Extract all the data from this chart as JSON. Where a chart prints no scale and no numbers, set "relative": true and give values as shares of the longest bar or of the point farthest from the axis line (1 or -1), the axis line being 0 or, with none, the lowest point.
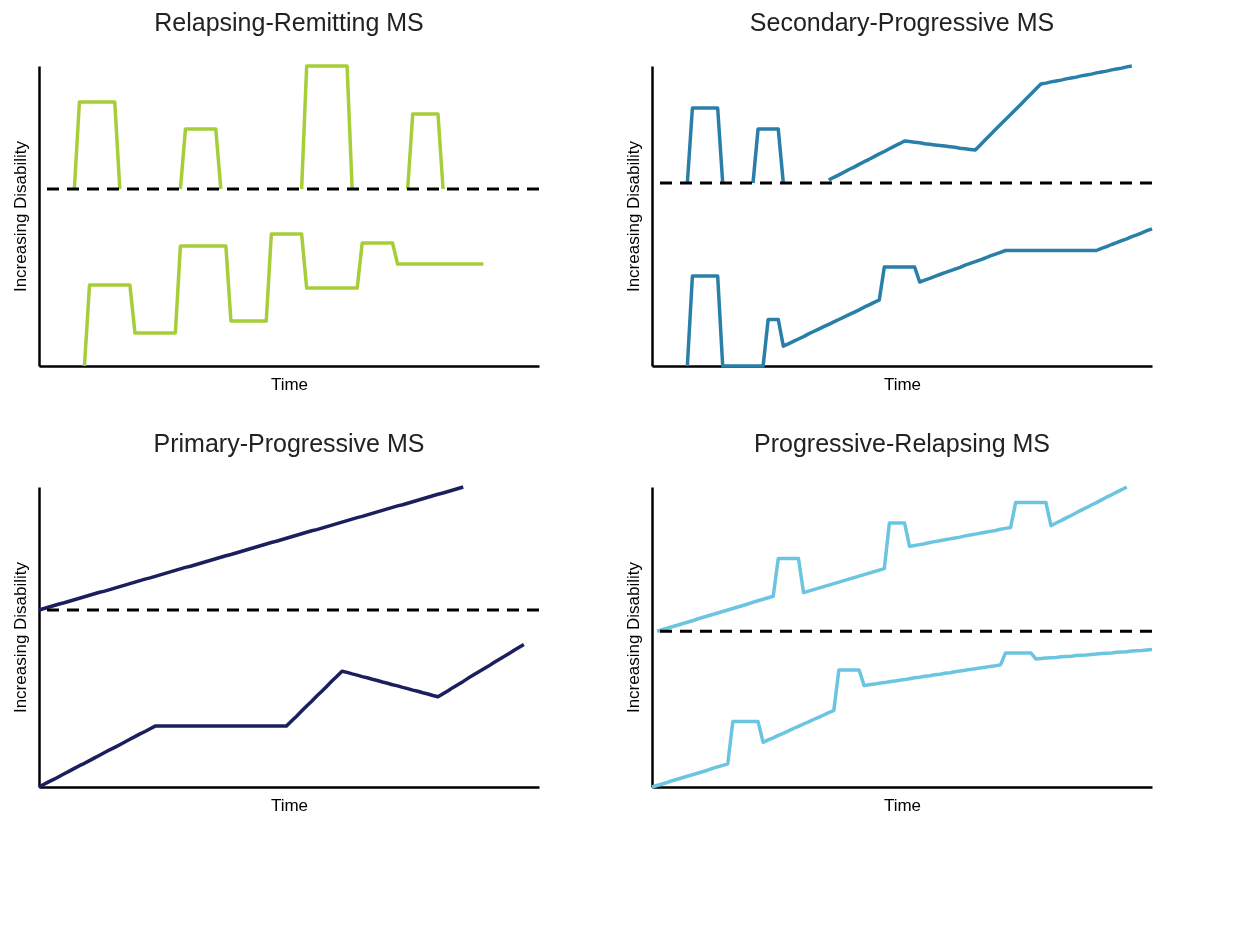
{
  "chart_data": [
    {
      "type": "line",
      "title": "Relapsing-Remitting MS",
      "xlabel": "Time",
      "ylabel": "Increasing Disability",
      "relative": true,
      "line_style": "solid",
      "marker": "none",
      "categories": [
        null,
        null,
        null,
        null,
        null,
        null,
        null,
        null,
        null,
        null,
        null,
        null,
        null,
        null,
        null,
        null,
        null,
        null,
        null,
        null,
        null,
        null,
        null,
        null,
        null,
        null,
        null,
        null,
        null,
        null,
        null,
        null,
        null,
        null,
        null,
        null,
        null,
        null,
        null,
        null,
        null,
        null,
        null,
        null,
        null,
        null,
        null,
        null,
        null,
        null,
        null,
        null,
        null,
        null,
        null,
        null,
        null,
        null,
        null,
        null,
        null,
        null,
        null,
        null,
        null,
        null,
        null,
        null,
        null,
        null,
        null,
        null,
        null,
        null,
        null,
        null,
        null,
        null,
        null,
        null,
        null,
        null,
        null,
        null,
        null,
        null,
        null,
        null,
        null,
        null,
        null,
        null,
        null,
        null,
        null,
        null,
        null,
        null,
        null,
        null
      ],
      "series": [
        {
          "color": "#a6ce39",
          "values": [
            null,
            null,
            null,
            null,
            null,
            null,
            null,
            0.59,
            0.88,
            0.88,
            0.88,
            0.88,
            0.88,
            0.88,
            0.88,
            0.88,
            0.59,
            null,
            null,
            null,
            null,
            null,
            null,
            null,
            null,
            null,
            null,
            null,
            0.59,
            0.79,
            0.79,
            0.79,
            0.79,
            0.79,
            0.79,
            0.79,
            0.59,
            null,
            null,
            null,
            null,
            null,
            null,
            null,
            null,
            null,
            null,
            null,
            null,
            null,
            null,
            null,
            0.59,
            1,
            1,
            1,
            1,
            1,
            1,
            1,
            1,
            1,
            0.59,
            null,
            null,
            null,
            null,
            null,
            null,
            null,
            null,
            null,
            null,
            0.59,
            0.84,
            0.84,
            0.84,
            0.84,
            0.84,
            0.84,
            0.59,
            null,
            null,
            null,
            null,
            null,
            null,
            null,
            null,
            null,
            null,
            null,
            null,
            null,
            null,
            null,
            null,
            null,
            null,
            null
          ]
        },
        {
          "color": "#a6ce39",
          "values": [
            null,
            null,
            null,
            null,
            null,
            null,
            null,
            null,
            null,
            0,
            0.27,
            0.27,
            0.27,
            0.27,
            0.27,
            0.27,
            0.27,
            0.27,
            0.27,
            0.11,
            0.11,
            0.11,
            0.11,
            0.11,
            0.11,
            0.11,
            0.11,
            0.11,
            0.4,
            0.4,
            0.4,
            0.4,
            0.4,
            0.4,
            0.4,
            0.4,
            0.4,
            0.4,
            0.15,
            0.15,
            0.15,
            0.15,
            0.15,
            0.15,
            0.15,
            0.15,
            0.44,
            0.44,
            0.44,
            0.44,
            0.44,
            0.44,
            0.44,
            0.26,
            0.26,
            0.26,
            0.26,
            0.26,
            0.26,
            0.26,
            0.26,
            0.26,
            0.26,
            0.26,
            0.41,
            0.41,
            0.41,
            0.41,
            0.41,
            0.41,
            0.41,
            0.34,
            0.34,
            0.34,
            0.34,
            0.34,
            0.34,
            0.34,
            0.34,
            0.34,
            0.34,
            0.34,
            0.34,
            0.34,
            0.34,
            0.34,
            0.34,
            0.34,
            0.34,
            null,
            null,
            null,
            null,
            null,
            null,
            null,
            null,
            null,
            null,
            null
          ]
        }
      ],
      "ref_lines": [
        {
          "axis": "y",
          "value": 0.59,
          "color": "#000000",
          "line_style": "dashed"
        }
      ]
    },
    {
      "type": "line",
      "title": "Secondary-Progressive MS",
      "xlabel": "Time",
      "ylabel": "Increasing Disability",
      "relative": true,
      "line_style": "solid",
      "marker": "none",
      "categories": [
        null,
        null,
        null,
        null,
        null,
        null,
        null,
        null,
        null,
        null,
        null,
        null,
        null,
        null,
        null,
        null,
        null,
        null,
        null,
        null,
        null,
        null,
        null,
        null,
        null,
        null,
        null,
        null,
        null,
        null,
        null,
        null,
        null,
        null,
        null,
        null,
        null,
        null,
        null,
        null,
        null,
        null,
        null,
        null,
        null,
        null,
        null,
        null,
        null,
        null,
        null,
        null,
        null,
        null,
        null,
        null,
        null,
        null,
        null,
        null,
        null,
        null,
        null,
        null,
        null,
        null,
        null,
        null,
        null,
        null,
        null,
        null,
        null,
        null,
        null,
        null,
        null,
        null,
        null,
        null,
        null,
        null,
        null,
        null,
        null,
        null,
        null,
        null,
        null,
        null,
        null,
        null,
        null,
        null,
        null,
        null,
        null,
        null,
        null,
        null
      ],
      "series": [
        {
          "color": "#2a7fa8",
          "values": [
            null,
            null,
            null,
            null,
            null,
            null,
            null,
            0.61,
            0.86,
            0.86,
            0.86,
            0.86,
            0.86,
            0.86,
            0.61,
            null,
            null,
            null,
            null,
            null,
            0.61,
            0.79,
            0.79,
            0.79,
            0.79,
            0.79,
            0.61,
            null,
            null,
            null,
            null,
            null,
            null,
            null,
            null,
            0.62,
            0.629,
            0.637,
            0.646,
            0.655,
            0.663,
            0.672,
            0.681,
            0.689,
            0.698,
            0.707,
            0.715,
            0.724,
            0.733,
            0.741,
            0.75,
            0.748,
            0.746,
            0.744,
            0.741,
            0.739,
            0.737,
            0.735,
            0.733,
            0.731,
            0.729,
            0.726,
            0.724,
            0.722,
            0.72,
            0.737,
            0.754,
            0.771,
            0.788,
            0.805,
            0.822,
            0.838,
            0.855,
            0.872,
            0.889,
            0.906,
            0.923,
            0.94,
            0.943,
            0.947,
            0.95,
            0.953,
            0.957,
            0.96,
            0.963,
            0.967,
            0.97,
            0.973,
            0.977,
            0.98,
            0.983,
            0.987,
            0.99,
            0.993,
            0.997,
            1,
            null,
            null,
            null,
            null
          ]
        },
        {
          "color": "#2a7fa8",
          "values": [
            null,
            null,
            null,
            null,
            null,
            null,
            null,
            0,
            0.3,
            0.3,
            0.3,
            0.3,
            0.3,
            0.3,
            0,
            0,
            0,
            0,
            0,
            0,
            0,
            0,
            0,
            0.155,
            0.155,
            0.155,
            0.066,
            0.074,
            0.082,
            0.09,
            0.098,
            0.107,
            0.115,
            0.123,
            0.131,
            0.139,
            0.147,
            0.155,
            0.163,
            0.171,
            0.179,
            0.187,
            0.196,
            0.204,
            0.212,
            0.22,
            0.33,
            0.33,
            0.33,
            0.33,
            0.33,
            0.33,
            0.33,
            0.28,
            0.286,
            0.292,
            0.299,
            0.305,
            0.311,
            0.317,
            0.323,
            0.329,
            0.336,
            0.342,
            0.348,
            0.354,
            0.36,
            0.367,
            0.373,
            0.379,
            0.385,
            0.385,
            0.385,
            0.385,
            0.385,
            0.385,
            0.385,
            0.385,
            0.385,
            0.385,
            0.385,
            0.385,
            0.385,
            0.385,
            0.385,
            0.385,
            0.385,
            0.385,
            0.385,
            0.392,
            0.398,
            0.405,
            0.411,
            0.418,
            0.424,
            0.431,
            0.437,
            0.444,
            0.451,
            0.457
          ]
        }
      ],
      "ref_lines": [
        {
          "axis": "y",
          "value": 0.61,
          "color": "#000000",
          "line_style": "dashed"
        }
      ]
    },
    {
      "type": "line",
      "title": "Primary-Progressive MS",
      "xlabel": "Time",
      "ylabel": "Increasing Disability",
      "relative": true,
      "line_style": "solid",
      "marker": "none",
      "categories": [
        null,
        null,
        null,
        null,
        null,
        null,
        null,
        null,
        null,
        null,
        null,
        null,
        null,
        null,
        null,
        null,
        null,
        null,
        null,
        null,
        null,
        null,
        null,
        null,
        null,
        null,
        null,
        null,
        null,
        null,
        null,
        null,
        null,
        null,
        null,
        null,
        null,
        null,
        null,
        null,
        null,
        null,
        null,
        null,
        null,
        null,
        null,
        null,
        null,
        null,
        null,
        null,
        null,
        null,
        null,
        null,
        null,
        null,
        null,
        null,
        null,
        null,
        null,
        null,
        null,
        null,
        null,
        null,
        null,
        null,
        null,
        null,
        null,
        null,
        null,
        null,
        null,
        null,
        null,
        null,
        null,
        null,
        null,
        null,
        null,
        null,
        null,
        null,
        null,
        null,
        null,
        null,
        null,
        null,
        null,
        null,
        null,
        null,
        null,
        null
      ],
      "series": [
        {
          "color": "#1b1f5e",
          "values": [
            0.59,
            0.595,
            0.6,
            0.605,
            0.61,
            0.614,
            0.619,
            0.624,
            0.629,
            0.634,
            0.639,
            0.644,
            0.649,
            0.653,
            0.658,
            0.663,
            0.668,
            0.673,
            0.678,
            0.683,
            0.688,
            0.693,
            0.697,
            0.702,
            0.707,
            0.712,
            0.717,
            0.722,
            0.727,
            0.732,
            0.736,
            0.741,
            0.746,
            0.751,
            0.756,
            0.761,
            0.766,
            0.771,
            0.775,
            0.78,
            0.785,
            0.79,
            0.795,
            0.8,
            0.805,
            0.81,
            0.815,
            0.819,
            0.824,
            0.829,
            0.834,
            0.839,
            0.844,
            0.849,
            0.854,
            0.858,
            0.863,
            0.868,
            0.873,
            0.878,
            0.883,
            0.888,
            0.893,
            0.898,
            0.902,
            0.907,
            0.912,
            0.917,
            0.922,
            0.927,
            0.932,
            0.937,
            0.941,
            0.946,
            0.951,
            0.956,
            0.961,
            0.966,
            0.971,
            0.976,
            0.98,
            0.985,
            0.99,
            0.995,
            1,
            null,
            null,
            null,
            null,
            null,
            null,
            null,
            null,
            null,
            null,
            null,
            null,
            null,
            null,
            null
          ]
        },
        {
          "color": "#1b1f5e",
          "values": [
            0,
            0.009,
            0.018,
            0.026,
            0.035,
            0.044,
            0.053,
            0.062,
            0.071,
            0.079,
            0.088,
            0.097,
            0.106,
            0.115,
            0.124,
            0.132,
            0.141,
            0.15,
            0.159,
            0.168,
            0.177,
            0.185,
            0.194,
            0.203,
            0.203,
            0.203,
            0.203,
            0.203,
            0.203,
            0.203,
            0.203,
            0.203,
            0.203,
            0.203,
            0.203,
            0.203,
            0.203,
            0.203,
            0.203,
            0.203,
            0.203,
            0.203,
            0.203,
            0.203,
            0.203,
            0.203,
            0.203,
            0.203,
            0.203,
            0.203,
            0.22,
            0.236,
            0.253,
            0.27,
            0.286,
            0.303,
            0.319,
            0.336,
            0.353,
            0.369,
            0.386,
            0.382,
            0.377,
            0.373,
            0.368,
            0.364,
            0.359,
            0.355,
            0.35,
            0.346,
            0.341,
            0.337,
            0.332,
            0.328,
            0.323,
            0.319,
            0.314,
            0.31,
            0.305,
            0.301,
            0.311,
            0.321,
            0.332,
            0.342,
            0.352,
            0.363,
            0.373,
            0.383,
            0.393,
            0.403,
            0.414,
            0.424,
            0.434,
            0.444,
            0.455,
            0.465,
            0.475,
            null,
            null,
            null
          ]
        }
      ],
      "ref_lines": [
        {
          "axis": "y",
          "value": 0.59,
          "color": "#000000",
          "line_style": "dashed"
        }
      ]
    },
    {
      "type": "line",
      "title": "Progressive-Relapsing MS",
      "xlabel": "Time",
      "ylabel": "Increasing Disability",
      "relative": true,
      "line_style": "solid",
      "marker": "none",
      "categories": [
        null,
        null,
        null,
        null,
        null,
        null,
        null,
        null,
        null,
        null,
        null,
        null,
        null,
        null,
        null,
        null,
        null,
        null,
        null,
        null,
        null,
        null,
        null,
        null,
        null,
        null,
        null,
        null,
        null,
        null,
        null,
        null,
        null,
        null,
        null,
        null,
        null,
        null,
        null,
        null,
        null,
        null,
        null,
        null,
        null,
        null,
        null,
        null,
        null,
        null,
        null,
        null,
        null,
        null,
        null,
        null,
        null,
        null,
        null,
        null,
        null,
        null,
        null,
        null,
        null,
        null,
        null,
        null,
        null,
        null,
        null,
        null,
        null,
        null,
        null,
        null,
        null,
        null,
        null,
        null,
        null,
        null,
        null,
        null,
        null,
        null,
        null,
        null,
        null,
        null,
        null,
        null,
        null,
        null,
        null,
        null,
        null,
        null,
        null,
        null
      ],
      "series": [
        {
          "color": "#6cc5e0",
          "values": [
            null,
            0.519,
            0.524,
            0.529,
            0.534,
            0.539,
            0.544,
            0.549,
            0.554,
            0.56,
            0.565,
            0.57,
            0.575,
            0.58,
            0.585,
            0.59,
            0.595,
            0.6,
            0.605,
            0.61,
            0.616,
            0.621,
            0.626,
            0.631,
            0.636,
            0.762,
            0.762,
            0.762,
            0.762,
            0.762,
            0.648,
            0.653,
            0.658,
            0.663,
            0.668,
            0.673,
            0.678,
            0.683,
            0.688,
            0.693,
            0.698,
            0.703,
            0.708,
            0.713,
            0.718,
            0.723,
            0.728,
            0.88,
            0.88,
            0.88,
            0.88,
            0.802,
            0.805,
            0.808,
            0.811,
            0.815,
            0.818,
            0.821,
            0.824,
            0.827,
            0.83,
            0.833,
            0.837,
            0.84,
            0.843,
            0.846,
            0.849,
            0.852,
            0.855,
            0.859,
            0.862,
            0.865,
            0.948,
            0.948,
            0.948,
            0.948,
            0.948,
            0.948,
            0.948,
            0.871,
            0.88,
            0.888,
            0.897,
            0.905,
            0.914,
            0.923,
            0.931,
            0.94,
            0.948,
            0.957,
            0.966,
            0.974,
            0.983,
            0.991,
            1,
            null,
            null,
            null,
            null,
            null
          ]
        },
        {
          "color": "#6cc5e0",
          "values": [
            0,
            0.005,
            0.01,
            0.015,
            0.021,
            0.026,
            0.031,
            0.036,
            0.041,
            0.046,
            0.051,
            0.056,
            0.062,
            0.067,
            0.072,
            0.077,
            0.218,
            0.218,
            0.218,
            0.218,
            0.218,
            0.218,
            0.149,
            0.157,
            0.164,
            0.172,
            0.179,
            0.187,
            0.195,
            0.202,
            0.21,
            0.217,
            0.225,
            0.232,
            0.24,
            0.248,
            0.255,
            0.39,
            0.39,
            0.39,
            0.39,
            0.39,
            0.338,
            0.341,
            0.343,
            0.346,
            0.348,
            0.351,
            0.353,
            0.356,
            0.358,
            0.361,
            0.364,
            0.366,
            0.369,
            0.371,
            0.374,
            0.376,
            0.379,
            0.381,
            0.384,
            0.387,
            0.389,
            0.392,
            0.394,
            0.397,
            0.399,
            0.402,
            0.404,
            0.407,
            0.447,
            0.447,
            0.447,
            0.447,
            0.447,
            0.447,
            0.427,
            0.428,
            0.43,
            0.431,
            0.432,
            0.434,
            0.435,
            0.436,
            0.438,
            0.439,
            0.44,
            0.442,
            0.443,
            0.445,
            0.446,
            0.447,
            0.449,
            0.45,
            0.451,
            0.453,
            0.454,
            0.455,
            0.457,
            0.458
          ]
        }
      ],
      "ref_lines": [
        {
          "axis": "y",
          "value": 0.519,
          "color": "#000000",
          "line_style": "dashed"
        }
      ]
    }
  ]
}
